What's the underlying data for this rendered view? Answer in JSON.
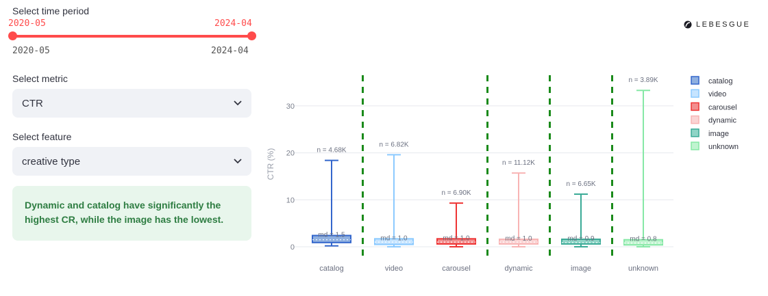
{
  "sidebar": {
    "time_period": {
      "label": "Select time period",
      "start": "2020-05",
      "end": "2024-04",
      "min": "2020-05",
      "max": "2024-04"
    },
    "metric": {
      "label": "Select metric",
      "value": "CTR"
    },
    "feature": {
      "label": "Select feature",
      "value": "creative type"
    },
    "insight": "Dynamic and catalog have significantly the highest CR, while the image has the lowest.",
    "accent_color": "#ff4b4b"
  },
  "logo": {
    "text": "LEBESGUE"
  },
  "chart_data": {
    "type": "box",
    "ylabel": "CTR (%)",
    "ylim": [
      -2,
      37
    ],
    "yticks": [
      0,
      10,
      20,
      30
    ],
    "grid": true,
    "legend_position": "right",
    "categories": [
      "catalog",
      "video",
      "carousel",
      "dynamic",
      "image",
      "unknown"
    ],
    "dividers_after": [
      "catalog",
      "carousel",
      "dynamic",
      "image"
    ],
    "divider_color": "#1a8a1a",
    "series": [
      {
        "name": "catalog",
        "color": "#3366cc",
        "fill": "#8fb0e0",
        "min": 0.2,
        "q1": 0.9,
        "median": 1.5,
        "q3": 2.4,
        "max": 18.4,
        "n_label": "n = 4.68K",
        "md_label": "md = 1.5"
      },
      {
        "name": "video",
        "color": "#8ccaff",
        "fill": "#c6e4ff",
        "min": 0.0,
        "q1": 0.5,
        "median": 1.0,
        "q3": 1.7,
        "max": 19.6,
        "n_label": "n = 6.82K",
        "md_label": "md = 1.0"
      },
      {
        "name": "carousel",
        "color": "#ee3333",
        "fill": "#f28f8f",
        "min": 0.0,
        "q1": 0.6,
        "median": 1.0,
        "q3": 1.7,
        "max": 9.3,
        "n_label": "n = 6.90K",
        "md_label": "md = 1.0"
      },
      {
        "name": "dynamic",
        "color": "#f8b4b4",
        "fill": "#fad4d4",
        "min": 0.0,
        "q1": 0.6,
        "median": 1.0,
        "q3": 1.6,
        "max": 15.7,
        "n_label": "n = 11.12K",
        "md_label": "md = 1.0"
      },
      {
        "name": "image",
        "color": "#3aaa96",
        "fill": "#8fd4c6",
        "min": 0.0,
        "q1": 0.6,
        "median": 0.9,
        "q3": 1.6,
        "max": 11.2,
        "n_label": "n = 6.65K",
        "md_label": "md = 0.9"
      },
      {
        "name": "unknown",
        "color": "#86e8a6",
        "fill": "#c0f4d0",
        "min": 0.0,
        "q1": 0.4,
        "median": 0.8,
        "q3": 1.5,
        "max": 33.3,
        "n_label": "n = 3.89K",
        "md_label": "md = 0.8"
      }
    ]
  }
}
